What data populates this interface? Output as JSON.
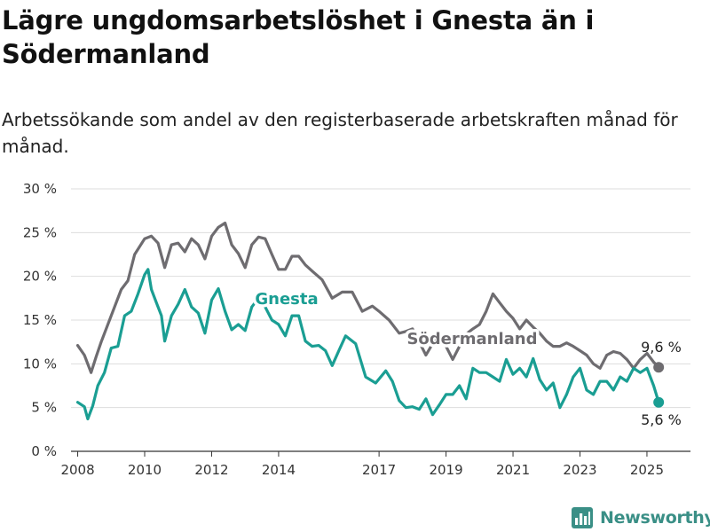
{
  "header": {
    "title": "Lägre ungdomsarbetslöshet i Gnesta än i Södermanland",
    "subtitle": "Arbetssökande som andel av den registerbaserade arbetskraften månad för månad."
  },
  "brand": {
    "name": "Newsworthy",
    "color": "#3a8f86"
  },
  "chart_data": {
    "type": "line",
    "title": "Lägre ungdomsarbetslöshet i Gnesta än i Södermanland",
    "subtitle": "Arbetssökande som andel av den registerbaserade arbetskraften månad för månad.",
    "xlabel": "",
    "ylabel": "",
    "xlim": [
      2007.8,
      2026.3
    ],
    "ylim": [
      0,
      30
    ],
    "y_ticks": [
      0,
      5,
      10,
      15,
      20,
      25,
      30
    ],
    "y_tick_labels": [
      "0 %",
      "5 %",
      "10 %",
      "15 %",
      "20 %",
      "25 %",
      "30 %"
    ],
    "x_ticks": [
      2008,
      2010,
      2012,
      2014,
      2017,
      2019,
      2021,
      2023,
      2025
    ],
    "x_tick_labels": [
      "2008",
      "2010",
      "2012",
      "2014",
      "2017",
      "2019",
      "2021",
      "2023",
      "2025"
    ],
    "grid": "horizontal",
    "legend": "direct labels on lines",
    "series": [
      {
        "name": "Södermanland",
        "color": "#6e6c70",
        "end_label": "9,6 %",
        "x": [
          2008.0,
          2008.2,
          2008.4,
          2008.55,
          2008.7,
          2009.0,
          2009.3,
          2009.5,
          2009.7,
          2010.0,
          2010.2,
          2010.4,
          2010.6,
          2010.8,
          2011.0,
          2011.2,
          2011.4,
          2011.6,
          2011.8,
          2012.0,
          2012.2,
          2012.4,
          2012.6,
          2012.8,
          2013.0,
          2013.2,
          2013.4,
          2013.6,
          2013.8,
          2014.0,
          2014.2,
          2014.4,
          2014.6,
          2014.8,
          2015.0,
          2015.3,
          2015.6,
          2015.9,
          2016.2,
          2016.5,
          2016.8,
          2017.0,
          2017.3,
          2017.6,
          2017.8,
          2018.0,
          2018.2,
          2018.4,
          2018.6,
          2018.8,
          2019.0,
          2019.2,
          2019.4,
          2019.6,
          2019.8,
          2020.0,
          2020.2,
          2020.4,
          2020.6,
          2020.8,
          2021.0,
          2021.2,
          2021.4,
          2021.6,
          2021.8,
          2022.0,
          2022.2,
          2022.4,
          2022.6,
          2022.8,
          2023.0,
          2023.2,
          2023.4,
          2023.6,
          2023.8,
          2024.0,
          2024.2,
          2024.4,
          2024.6,
          2024.8,
          2025.0,
          2025.2,
          2025.35
        ],
        "values": [
          12.1,
          11.0,
          9.0,
          10.8,
          12.5,
          15.5,
          18.5,
          19.5,
          22.5,
          24.3,
          24.6,
          23.8,
          21.0,
          23.6,
          23.8,
          22.8,
          24.3,
          23.6,
          22.0,
          24.6,
          25.6,
          26.1,
          23.6,
          22.6,
          21.0,
          23.6,
          24.5,
          24.3,
          22.5,
          20.8,
          20.8,
          22.3,
          22.3,
          21.3,
          20.6,
          19.6,
          17.5,
          18.2,
          18.2,
          16.0,
          16.6,
          16.0,
          15.0,
          13.5,
          13.7,
          14.0,
          12.5,
          11.0,
          12.3,
          13.0,
          12.0,
          10.5,
          12.0,
          13.4,
          14.0,
          14.5,
          16.0,
          18.0,
          17.0,
          16.0,
          15.2,
          14.0,
          15.0,
          14.2,
          13.5,
          12.6,
          12.0,
          12.0,
          12.4,
          12.0,
          11.5,
          11.0,
          10.0,
          9.5,
          11.0,
          11.4,
          11.2,
          10.5,
          9.5,
          10.5,
          11.2,
          10.2,
          9.6
        ]
      },
      {
        "name": "Gnesta",
        "color": "#1a9e93",
        "end_label": "5,6 %",
        "x": [
          2008.0,
          2008.2,
          2008.3,
          2008.45,
          2008.6,
          2008.8,
          2009.0,
          2009.2,
          2009.4,
          2009.6,
          2009.8,
          2010.0,
          2010.1,
          2010.2,
          2010.35,
          2010.5,
          2010.6,
          2010.8,
          2011.0,
          2011.2,
          2011.4,
          2011.6,
          2011.8,
          2012.0,
          2012.2,
          2012.4,
          2012.6,
          2012.8,
          2013.0,
          2013.2,
          2013.4,
          2013.6,
          2013.8,
          2014.0,
          2014.2,
          2014.4,
          2014.6,
          2014.8,
          2015.0,
          2015.2,
          2015.4,
          2015.6,
          2015.8,
          2016.0,
          2016.3,
          2016.6,
          2016.9,
          2017.2,
          2017.4,
          2017.6,
          2017.8,
          2018.0,
          2018.2,
          2018.4,
          2018.6,
          2018.8,
          2019.0,
          2019.2,
          2019.4,
          2019.6,
          2019.8,
          2020.0,
          2020.2,
          2020.4,
          2020.6,
          2020.8,
          2021.0,
          2021.2,
          2021.4,
          2021.6,
          2021.8,
          2022.0,
          2022.2,
          2022.4,
          2022.6,
          2022.8,
          2023.0,
          2023.2,
          2023.4,
          2023.6,
          2023.8,
          2024.0,
          2024.2,
          2024.4,
          2024.6,
          2024.8,
          2025.0,
          2025.2,
          2025.35
        ],
        "values": [
          5.6,
          5.1,
          3.7,
          5.2,
          7.5,
          9.0,
          11.8,
          12.0,
          15.5,
          16.0,
          18.0,
          20.2,
          20.8,
          18.5,
          17.0,
          15.5,
          12.6,
          15.5,
          16.8,
          18.5,
          16.5,
          15.8,
          13.5,
          17.3,
          18.6,
          16.0,
          13.9,
          14.5,
          13.8,
          16.5,
          17.5,
          16.5,
          15.0,
          14.5,
          13.2,
          15.5,
          15.5,
          12.6,
          12.0,
          12.1,
          11.5,
          9.8,
          11.5,
          13.2,
          12.3,
          8.5,
          7.8,
          9.2,
          8.0,
          5.8,
          5.0,
          5.1,
          4.8,
          6.0,
          4.2,
          5.3,
          6.5,
          6.5,
          7.5,
          6.0,
          9.5,
          9.0,
          9.0,
          8.5,
          8.0,
          10.5,
          8.8,
          9.5,
          8.5,
          10.6,
          8.2,
          7.0,
          7.8,
          5.0,
          6.5,
          8.5,
          9.5,
          7.0,
          6.5,
          8.0,
          8.0,
          7.0,
          8.5,
          8.0,
          9.5,
          9.0,
          9.5,
          7.5,
          5.6
        ]
      }
    ]
  }
}
